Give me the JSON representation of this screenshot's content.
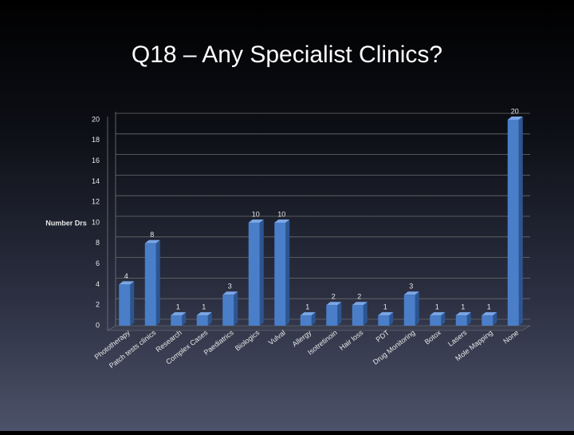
{
  "chart_data": {
    "type": "bar",
    "title": "Q18 – Any Specialist Clinics?",
    "ylabel": "Number Drs",
    "categories": [
      "Phototherapy",
      "Patch tests clinics",
      "Research",
      "Complex Cases",
      "Paediatrics",
      "Biologics",
      "Vulval",
      "Allergy",
      "Isotretinoin",
      "Hair loss",
      "PDT",
      "Drug Monitoring",
      "Botox",
      "Lasers",
      "Mole Mapping",
      "None"
    ],
    "values": [
      4,
      8,
      1,
      1,
      3,
      10,
      10,
      1,
      2,
      2,
      1,
      3,
      1,
      1,
      1,
      20
    ],
    "color": "#4a7ec8",
    "ylim": [
      0,
      20
    ],
    "yticks": [
      0,
      2,
      4,
      6,
      8,
      10,
      12,
      14,
      16,
      18,
      20
    ],
    "grid": true
  }
}
